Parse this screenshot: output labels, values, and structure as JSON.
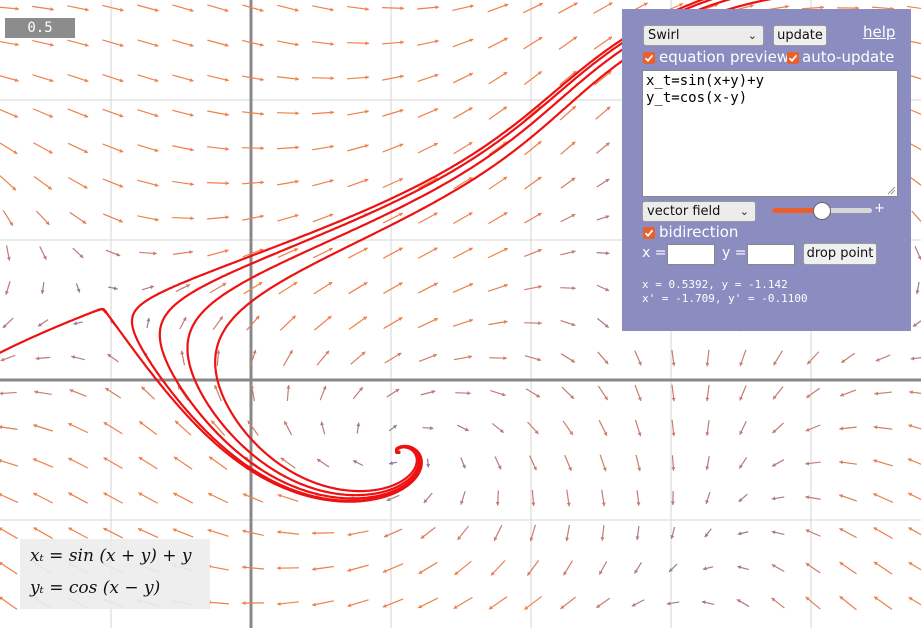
{
  "scale_badge": "0.5",
  "panel": {
    "preset_select": "Swirl",
    "update_label": "update",
    "help_label": "help",
    "equation_preview_label": "equation preview",
    "auto_update_label": "auto-update",
    "equations_text": "x_t=sin(x+y)+y\ny_t=cos(x-y)",
    "mode_select": "vector field",
    "slider_plus": "+",
    "slider_level": 0.5,
    "bidirection_label": "bidirection",
    "x_label": "x =",
    "y_label": "y =",
    "x_value": "",
    "y_value": "",
    "drop_point_label": "drop point",
    "readout_line1": "x = 0.5392, y = -1.142",
    "readout_line2": "x' = -1.709, y' = -0.1100"
  },
  "equation_overlay": {
    "line1": "xₜ = sin (x + y) + y",
    "line2": "yₜ = cos (x − y)"
  },
  "colors": {
    "panel_bg": "#8b8cbf",
    "accent": "#e8602c",
    "trajectory": "#ee1111",
    "arrow_fast": "#ef8048",
    "arrow_slow": "#7a76b6",
    "grid": "#d6d6d6",
    "axis": "#888888"
  }
}
